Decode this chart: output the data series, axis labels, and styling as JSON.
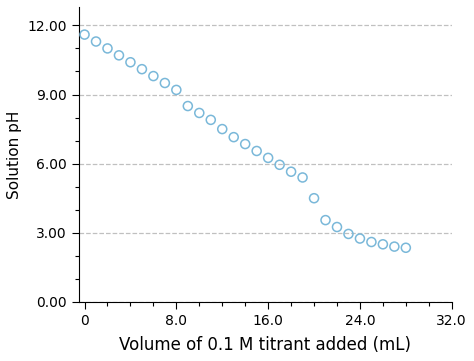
{
  "x": [
    0,
    1,
    2,
    3,
    4,
    5,
    6,
    7,
    8,
    9,
    10,
    11,
    12,
    13,
    14,
    15,
    16,
    17,
    18,
    19,
    20,
    21,
    22,
    23,
    24,
    25,
    26,
    27,
    28
  ],
  "y": [
    11.6,
    11.3,
    11.0,
    10.7,
    10.4,
    10.1,
    9.8,
    9.5,
    9.2,
    8.5,
    8.2,
    7.9,
    7.5,
    7.15,
    6.85,
    6.55,
    6.25,
    5.95,
    5.65,
    5.4,
    4.5,
    3.55,
    3.25,
    2.95,
    2.75,
    2.6,
    2.5,
    2.4,
    2.35
  ],
  "marker_color": "#7ab8d9",
  "marker_face_color": "none",
  "xlabel": "Volume of 0.1 M titrant added (mL)",
  "ylabel": "Solution pH",
  "xlim": [
    -0.5,
    32.0
  ],
  "ylim": [
    0,
    12.8
  ],
  "yticks": [
    0.0,
    3.0,
    6.0,
    9.0,
    12.0
  ],
  "xticks": [
    0,
    8.0,
    16.0,
    24.0,
    32.0
  ],
  "ytick_labels": [
    "0.00",
    "3.00",
    "6.00",
    "9.00",
    "12.00"
  ],
  "xtick_labels": [
    "0",
    "8.0",
    "16.0",
    "24.0",
    "32.0"
  ],
  "grid_color": "#c0c0c0",
  "background_color": "#ffffff",
  "marker_size": 6.5,
  "marker_linewidth": 1.1,
  "xlabel_fontsize": 12,
  "ylabel_fontsize": 11,
  "tick_fontsize": 10
}
